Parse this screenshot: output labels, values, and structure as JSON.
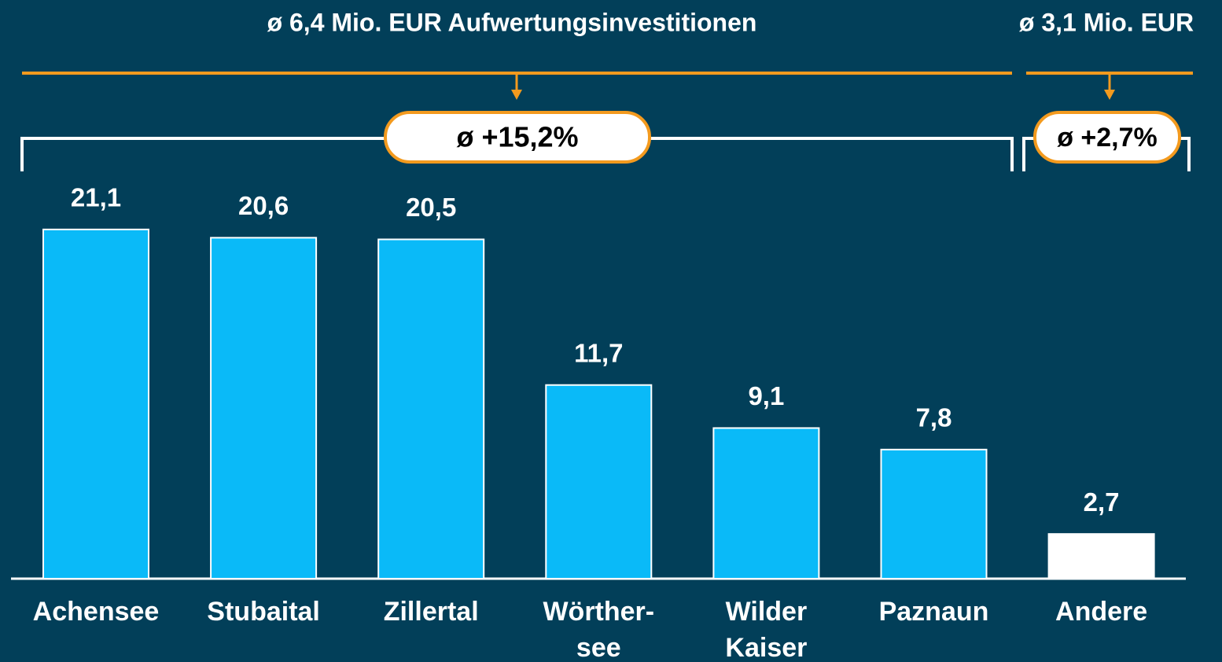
{
  "chart_data": {
    "type": "bar",
    "categories": [
      "Achensee",
      "Stubaital",
      "Zillertal",
      "Wörther-\nsee",
      "Wilder\nKaiser",
      "Paznaun",
      "Andere"
    ],
    "values": [
      21.1,
      20.6,
      20.5,
      11.7,
      9.1,
      7.8,
      2.7
    ],
    "value_labels": [
      "21,1",
      "20,6",
      "20,5",
      "11,7",
      "9,1",
      "7,8",
      "2,7"
    ],
    "colors": [
      "#0abaf8",
      "#0abaf8",
      "#0abaf8",
      "#0abaf8",
      "#0abaf8",
      "#0abaf8",
      "#ffffff"
    ],
    "annotations": [
      {
        "text": "ø 6,4 Mio. EUR Aufwertungsinvestitionen"
      },
      {
        "text": "ø 3,1 Mio. EUR"
      },
      {
        "text": "ø +15,2%"
      },
      {
        "text": "ø +2,7%"
      }
    ]
  }
}
